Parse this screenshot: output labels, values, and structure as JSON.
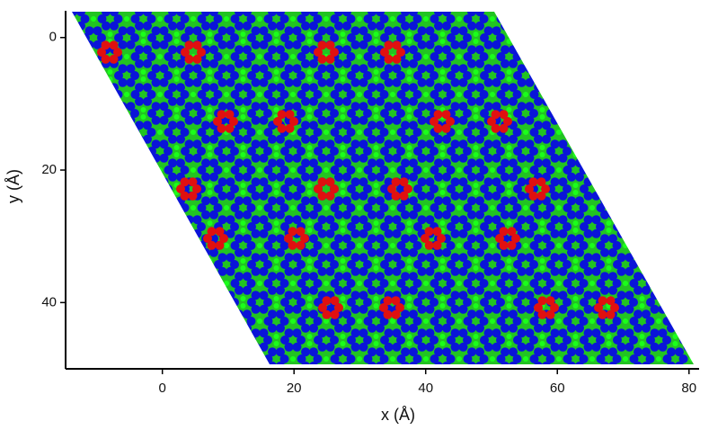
{
  "chart_data": {
    "type": "scatter",
    "x_label": "x (Å)",
    "y_label": "y (Å)",
    "xlim": [
      -14.7,
      81.4
    ],
    "xticks": [
      0,
      20,
      40,
      60,
      80
    ],
    "ylim": [
      50,
      -3.9
    ],
    "yticks": [
      0,
      20,
      40
    ]
  }
}
